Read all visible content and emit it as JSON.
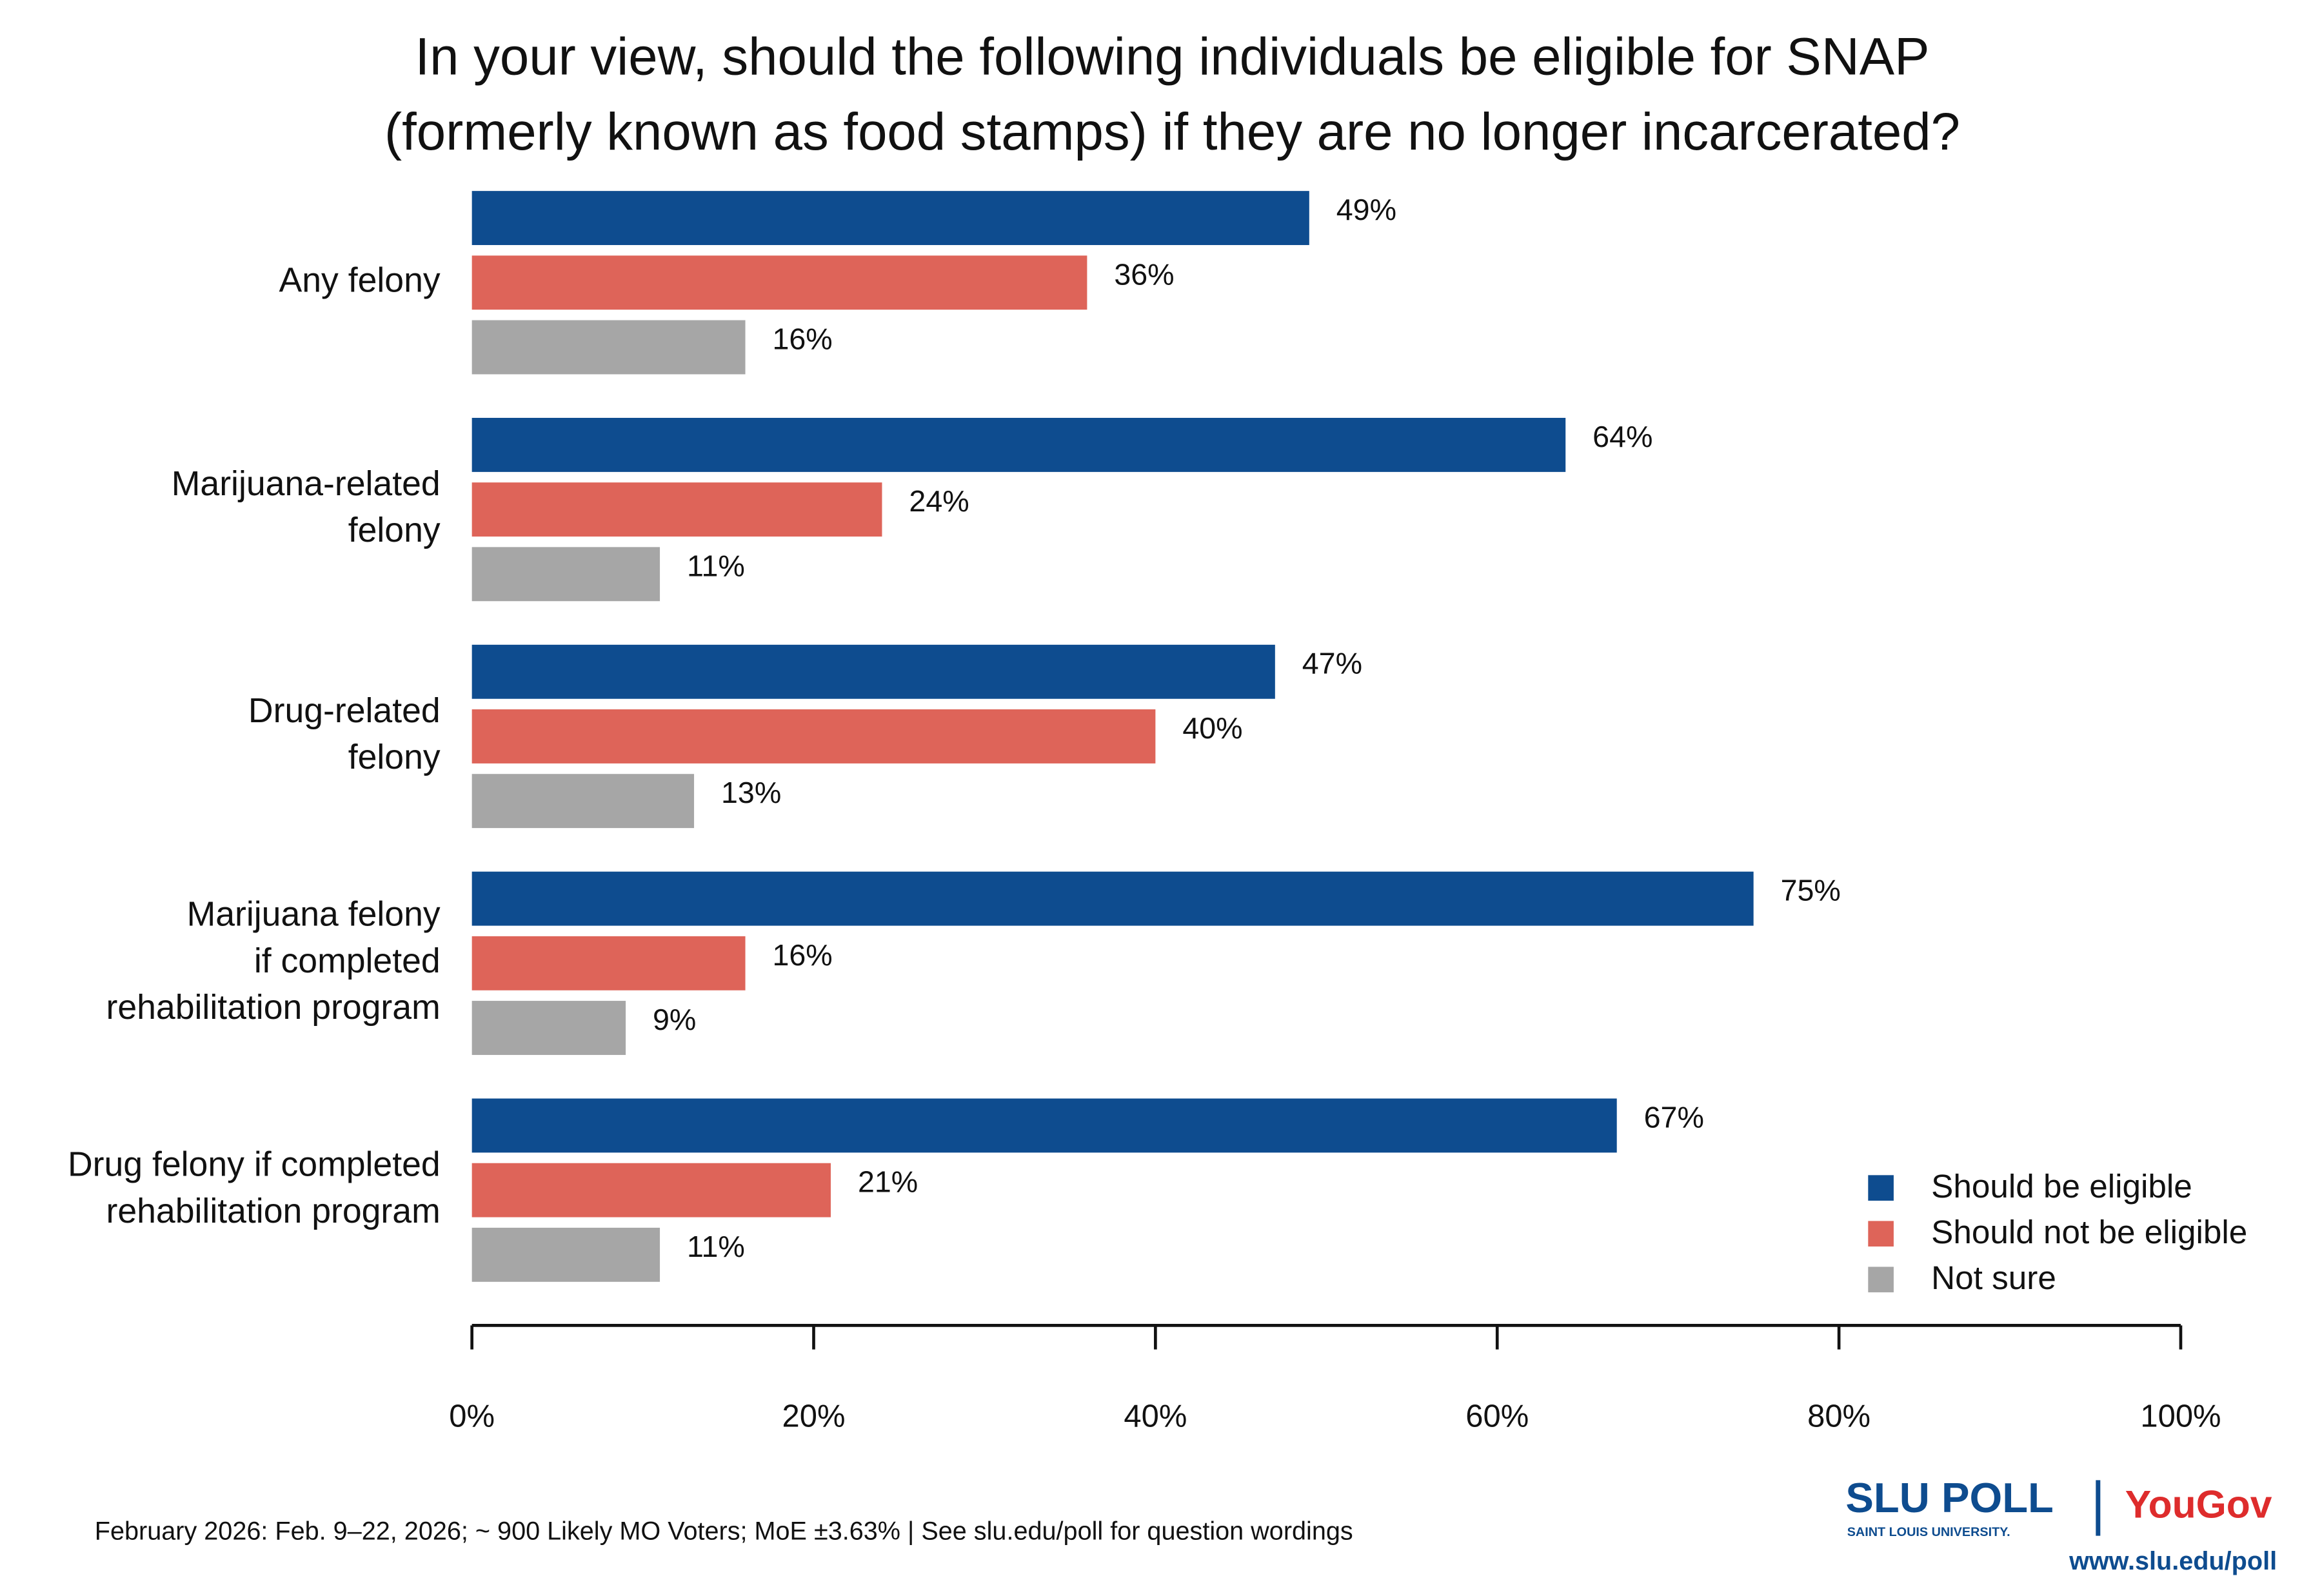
{
  "chart_data": {
    "type": "bar",
    "orientation": "horizontal",
    "title": "In your view, should the following individuals be eligible for SNAP\n(formerly known as food stamps) if they are no longer incarcerated?",
    "categories": [
      "Any felony",
      "Marijuana-related\nfelony",
      "Drug-related\nfelony",
      "Marijuana felony\nif completed\nrehabilitation program",
      "Drug felony if completed\nrehabilitation program"
    ],
    "series": [
      {
        "name": "Should be eligible",
        "color": "#0e4c8f",
        "values": [
          49,
          64,
          47,
          75,
          67
        ],
        "value_labels": [
          "49%",
          "64%",
          "47%",
          "75%",
          "67%"
        ]
      },
      {
        "name": "Should not be eligible",
        "color": "#de6459",
        "values": [
          36,
          24,
          40,
          16,
          21
        ],
        "value_labels": [
          "36%",
          "24%",
          "40%",
          "16%",
          "21%"
        ]
      },
      {
        "name": "Not sure",
        "color": "#a6a6a6",
        "values": [
          16,
          11,
          13,
          9,
          11
        ],
        "value_labels": [
          "16%",
          "11%",
          "13%",
          "9%",
          "11%"
        ]
      }
    ],
    "xlim": [
      0,
      100
    ],
    "xticks": [
      {
        "value": 0,
        "label": "0%"
      },
      {
        "value": 20,
        "label": "20%"
      },
      {
        "value": 40,
        "label": "40%"
      },
      {
        "value": 60,
        "label": "60%"
      },
      {
        "value": 80,
        "label": "80%"
      },
      {
        "value": 100,
        "label": "100%"
      }
    ],
    "grid": false,
    "legend": "lower right",
    "footnote": "February 2026: Feb. 9–22, 2026; ~ 900 Likely MO Voters; MoE ±3.63%  |  See slu.edu/poll for question wordings"
  },
  "branding": {
    "logo": "SLU POLL",
    "university": "SAINT LOUIS UNIVERSITY.",
    "partner": "YouGov",
    "url": "www.slu.edu/poll"
  }
}
